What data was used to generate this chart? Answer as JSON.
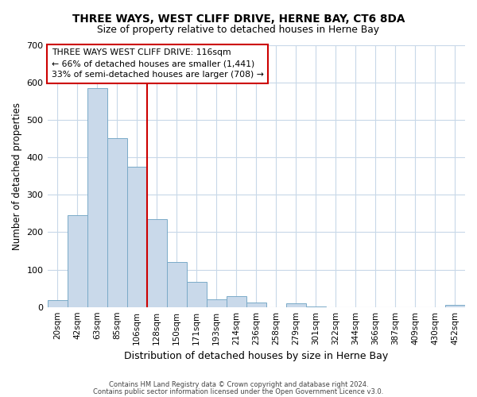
{
  "title": "THREE WAYS, WEST CLIFF DRIVE, HERNE BAY, CT6 8DA",
  "subtitle": "Size of property relative to detached houses in Herne Bay",
  "xlabel": "Distribution of detached houses by size in Herne Bay",
  "ylabel": "Number of detached properties",
  "bar_labels": [
    "20sqm",
    "42sqm",
    "63sqm",
    "85sqm",
    "106sqm",
    "128sqm",
    "150sqm",
    "171sqm",
    "193sqm",
    "214sqm",
    "236sqm",
    "258sqm",
    "279sqm",
    "301sqm",
    "322sqm",
    "344sqm",
    "366sqm",
    "387sqm",
    "409sqm",
    "430sqm",
    "452sqm"
  ],
  "bar_values": [
    18,
    245,
    585,
    450,
    375,
    235,
    120,
    68,
    20,
    30,
    12,
    0,
    10,
    2,
    0,
    0,
    0,
    0,
    0,
    0,
    5
  ],
  "bar_color": "#c9d9ea",
  "bar_edge_color": "#7aaac8",
  "background_color": "#ffffff",
  "grid_color": "#c8d8e8",
  "vline_x": 5.0,
  "vline_color": "#cc0000",
  "annotation_text": "THREE WAYS WEST CLIFF DRIVE: 116sqm\n← 66% of detached houses are smaller (1,441)\n33% of semi-detached houses are larger (708) →",
  "annotation_box_color": "#ffffff",
  "annotation_box_edge": "#cc0000",
  "ylim": [
    0,
    700
  ],
  "yticks": [
    0,
    100,
    200,
    300,
    400,
    500,
    600,
    700
  ],
  "footer_line1": "Contains HM Land Registry data © Crown copyright and database right 2024.",
  "footer_line2": "Contains public sector information licensed under the Open Government Licence v3.0."
}
